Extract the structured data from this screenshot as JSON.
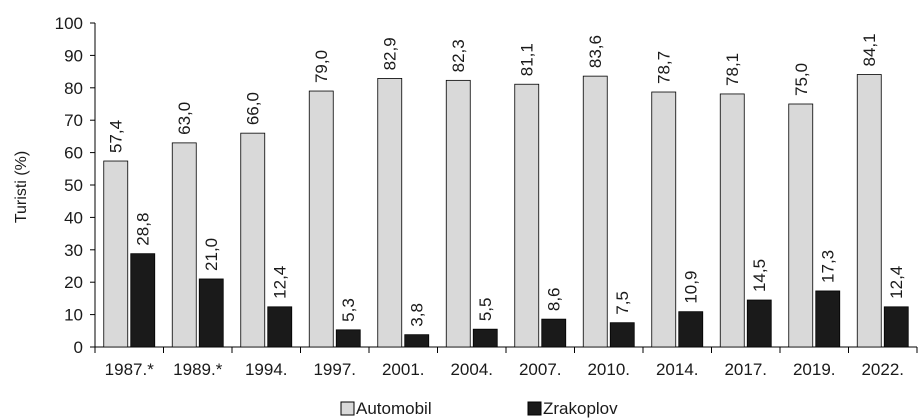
{
  "chart_data": {
    "type": "bar",
    "categories": [
      "1987.*",
      "1989.*",
      "1994.",
      "1997.",
      "2001.",
      "2004.",
      "2007.",
      "2010.",
      "2014.",
      "2017.",
      "2019.",
      "2022."
    ],
    "series": [
      {
        "name": "Automobil",
        "color": "#d9d9d9",
        "values": [
          57.4,
          63.0,
          66.0,
          79.0,
          82.9,
          82.3,
          81.1,
          83.6,
          78.7,
          78.1,
          75.0,
          84.1
        ],
        "labels": [
          "57,4",
          "63,0",
          "66,0",
          "79,0",
          "82,9",
          "82,3",
          "81,1",
          "83,6",
          "78,7",
          "78,1",
          "75,0",
          "84,1"
        ]
      },
      {
        "name": "Zrakoplov",
        "color": "#1a1a1a",
        "values": [
          28.8,
          21.0,
          12.4,
          5.3,
          3.8,
          5.5,
          8.6,
          7.5,
          10.9,
          14.5,
          17.3,
          12.4
        ],
        "labels": [
          "28,8",
          "21,0",
          "12,4",
          "5,3",
          "3,8",
          "5,5",
          "8,6",
          "7,5",
          "10,9",
          "14,5",
          "17,3",
          "12,4"
        ]
      }
    ],
    "ylabel": "Turisti (%)",
    "xlabel": "",
    "ylim": [
      0,
      100
    ],
    "yticks": [
      0,
      10,
      20,
      30,
      40,
      50,
      60,
      70,
      80,
      90,
      100
    ],
    "grid": false,
    "legend_position": "bottom"
  }
}
